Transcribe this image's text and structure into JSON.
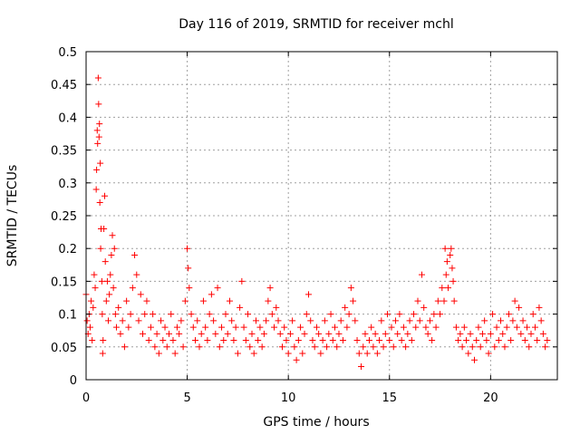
{
  "chart_data": {
    "type": "scatter",
    "title": "Day 116 of 2019, SRMTID for receiver mchl",
    "xlabel": "GPS time / hours",
    "ylabel": "SRMTID / TECUs",
    "xlim": [
      0,
      23.3
    ],
    "ylim": [
      0,
      0.5
    ],
    "xticks": [
      0,
      5,
      10,
      15,
      20
    ],
    "xtick_labels": [
      "0",
      "5",
      "10",
      "15",
      "20"
    ],
    "yticks": [
      0,
      0.05,
      0.1,
      0.15,
      0.2,
      0.25,
      0.3,
      0.35,
      0.4,
      0.45,
      0.5
    ],
    "ytick_labels": [
      "0",
      "0.05",
      "0.1",
      "0.15",
      "0.2",
      "0.25",
      "0.3",
      "0.35",
      "0.4",
      "0.45",
      "0.5"
    ],
    "grid": true,
    "marker": "+",
    "color": "#ff0000",
    "series": [
      {
        "name": "SRMTID",
        "points": [
          [
            0.0,
            0.13
          ],
          [
            0.05,
            0.09
          ],
          [
            0.1,
            0.07
          ],
          [
            0.15,
            0.1
          ],
          [
            0.2,
            0.08
          ],
          [
            0.25,
            0.12
          ],
          [
            0.3,
            0.06
          ],
          [
            0.35,
            0.11
          ],
          [
            0.4,
            0.16
          ],
          [
            0.45,
            0.14
          ],
          [
            0.5,
            0.29
          ],
          [
            0.52,
            0.32
          ],
          [
            0.55,
            0.38
          ],
          [
            0.57,
            0.36
          ],
          [
            0.6,
            0.46
          ],
          [
            0.62,
            0.42
          ],
          [
            0.64,
            0.37
          ],
          [
            0.66,
            0.39
          ],
          [
            0.68,
            0.27
          ],
          [
            0.7,
            0.33
          ],
          [
            0.72,
            0.2
          ],
          [
            0.74,
            0.23
          ],
          [
            0.78,
            0.15
          ],
          [
            0.8,
            0.1
          ],
          [
            0.82,
            0.04
          ],
          [
            0.84,
            0.06
          ],
          [
            0.88,
            0.23
          ],
          [
            0.92,
            0.28
          ],
          [
            0.95,
            0.18
          ],
          [
            1.0,
            0.12
          ],
          [
            1.05,
            0.15
          ],
          [
            1.1,
            0.09
          ],
          [
            1.15,
            0.13
          ],
          [
            1.2,
            0.16
          ],
          [
            1.25,
            0.19
          ],
          [
            1.3,
            0.22
          ],
          [
            1.35,
            0.14
          ],
          [
            1.4,
            0.2
          ],
          [
            1.45,
            0.1
          ],
          [
            1.5,
            0.08
          ],
          [
            1.6,
            0.11
          ],
          [
            1.7,
            0.07
          ],
          [
            1.8,
            0.09
          ],
          [
            1.9,
            0.05
          ],
          [
            2.0,
            0.12
          ],
          [
            2.1,
            0.08
          ],
          [
            2.2,
            0.1
          ],
          [
            2.3,
            0.14
          ],
          [
            2.4,
            0.19
          ],
          [
            2.5,
            0.16
          ],
          [
            2.6,
            0.09
          ],
          [
            2.7,
            0.13
          ],
          [
            2.8,
            0.07
          ],
          [
            2.9,
            0.1
          ],
          [
            3.0,
            0.12
          ],
          [
            3.1,
            0.06
          ],
          [
            3.2,
            0.08
          ],
          [
            3.3,
            0.1
          ],
          [
            3.4,
            0.05
          ],
          [
            3.5,
            0.07
          ],
          [
            3.6,
            0.04
          ],
          [
            3.7,
            0.09
          ],
          [
            3.8,
            0.06
          ],
          [
            3.9,
            0.08
          ],
          [
            4.0,
            0.05
          ],
          [
            4.1,
            0.07
          ],
          [
            4.2,
            0.1
          ],
          [
            4.3,
            0.06
          ],
          [
            4.4,
            0.04
          ],
          [
            4.5,
            0.08
          ],
          [
            4.6,
            0.07
          ],
          [
            4.7,
            0.09
          ],
          [
            4.8,
            0.05
          ],
          [
            4.9,
            0.12
          ],
          [
            5.0,
            0.2
          ],
          [
            5.05,
            0.17
          ],
          [
            5.1,
            0.14
          ],
          [
            5.2,
            0.1
          ],
          [
            5.3,
            0.08
          ],
          [
            5.4,
            0.06
          ],
          [
            5.5,
            0.09
          ],
          [
            5.6,
            0.05
          ],
          [
            5.7,
            0.07
          ],
          [
            5.8,
            0.12
          ],
          [
            5.9,
            0.08
          ],
          [
            6.0,
            0.06
          ],
          [
            6.1,
            0.1
          ],
          [
            6.2,
            0.13
          ],
          [
            6.3,
            0.09
          ],
          [
            6.4,
            0.07
          ],
          [
            6.5,
            0.14
          ],
          [
            6.6,
            0.05
          ],
          [
            6.7,
            0.08
          ],
          [
            6.8,
            0.06
          ],
          [
            6.9,
            0.1
          ],
          [
            7.0,
            0.07
          ],
          [
            7.1,
            0.12
          ],
          [
            7.2,
            0.09
          ],
          [
            7.3,
            0.06
          ],
          [
            7.4,
            0.08
          ],
          [
            7.5,
            0.04
          ],
          [
            7.6,
            0.11
          ],
          [
            7.7,
            0.15
          ],
          [
            7.8,
            0.08
          ],
          [
            7.9,
            0.06
          ],
          [
            8.0,
            0.1
          ],
          [
            8.1,
            0.05
          ],
          [
            8.2,
            0.07
          ],
          [
            8.3,
            0.04
          ],
          [
            8.4,
            0.09
          ],
          [
            8.5,
            0.06
          ],
          [
            8.6,
            0.08
          ],
          [
            8.7,
            0.05
          ],
          [
            8.8,
            0.07
          ],
          [
            8.9,
            0.09
          ],
          [
            9.0,
            0.12
          ],
          [
            9.1,
            0.14
          ],
          [
            9.2,
            0.1
          ],
          [
            9.3,
            0.08
          ],
          [
            9.4,
            0.11
          ],
          [
            9.5,
            0.09
          ],
          [
            9.6,
            0.07
          ],
          [
            9.7,
            0.05
          ],
          [
            9.8,
            0.08
          ],
          [
            9.9,
            0.06
          ],
          [
            10.0,
            0.04
          ],
          [
            10.1,
            0.07
          ],
          [
            10.2,
            0.09
          ],
          [
            10.3,
            0.05
          ],
          [
            10.4,
            0.03
          ],
          [
            10.5,
            0.06
          ],
          [
            10.6,
            0.08
          ],
          [
            10.7,
            0.04
          ],
          [
            10.8,
            0.07
          ],
          [
            10.9,
            0.1
          ],
          [
            11.0,
            0.13
          ],
          [
            11.1,
            0.09
          ],
          [
            11.2,
            0.06
          ],
          [
            11.3,
            0.05
          ],
          [
            11.4,
            0.08
          ],
          [
            11.5,
            0.07
          ],
          [
            11.6,
            0.04
          ],
          [
            11.7,
            0.06
          ],
          [
            11.8,
            0.09
          ],
          [
            11.9,
            0.05
          ],
          [
            12.0,
            0.07
          ],
          [
            12.1,
            0.1
          ],
          [
            12.2,
            0.06
          ],
          [
            12.3,
            0.08
          ],
          [
            12.4,
            0.05
          ],
          [
            12.5,
            0.07
          ],
          [
            12.6,
            0.09
          ],
          [
            12.7,
            0.06
          ],
          [
            12.8,
            0.11
          ],
          [
            12.9,
            0.08
          ],
          [
            13.0,
            0.1
          ],
          [
            13.1,
            0.14
          ],
          [
            13.2,
            0.12
          ],
          [
            13.3,
            0.09
          ],
          [
            13.4,
            0.06
          ],
          [
            13.5,
            0.04
          ],
          [
            13.6,
            0.02
          ],
          [
            13.7,
            0.05
          ],
          [
            13.8,
            0.07
          ],
          [
            13.9,
            0.04
          ],
          [
            14.0,
            0.06
          ],
          [
            14.1,
            0.08
          ],
          [
            14.2,
            0.05
          ],
          [
            14.3,
            0.07
          ],
          [
            14.4,
            0.04
          ],
          [
            14.5,
            0.06
          ],
          [
            14.6,
            0.09
          ],
          [
            14.7,
            0.05
          ],
          [
            14.8,
            0.07
          ],
          [
            14.9,
            0.1
          ],
          [
            15.0,
            0.06
          ],
          [
            15.1,
            0.08
          ],
          [
            15.2,
            0.05
          ],
          [
            15.3,
            0.09
          ],
          [
            15.4,
            0.07
          ],
          [
            15.5,
            0.1
          ],
          [
            15.6,
            0.06
          ],
          [
            15.7,
            0.08
          ],
          [
            15.8,
            0.05
          ],
          [
            15.9,
            0.07
          ],
          [
            16.0,
            0.09
          ],
          [
            16.1,
            0.06
          ],
          [
            16.2,
            0.1
          ],
          [
            16.3,
            0.08
          ],
          [
            16.4,
            0.12
          ],
          [
            16.5,
            0.09
          ],
          [
            16.6,
            0.16
          ],
          [
            16.7,
            0.11
          ],
          [
            16.8,
            0.08
          ],
          [
            16.9,
            0.07
          ],
          [
            17.0,
            0.09
          ],
          [
            17.1,
            0.06
          ],
          [
            17.2,
            0.1
          ],
          [
            17.3,
            0.08
          ],
          [
            17.4,
            0.12
          ],
          [
            17.5,
            0.1
          ],
          [
            17.6,
            0.14
          ],
          [
            17.7,
            0.12
          ],
          [
            17.75,
            0.2
          ],
          [
            17.8,
            0.16
          ],
          [
            17.85,
            0.18
          ],
          [
            17.9,
            0.14
          ],
          [
            18.0,
            0.19
          ],
          [
            18.05,
            0.2
          ],
          [
            18.1,
            0.17
          ],
          [
            18.15,
            0.15
          ],
          [
            18.2,
            0.12
          ],
          [
            18.3,
            0.08
          ],
          [
            18.4,
            0.06
          ],
          [
            18.5,
            0.07
          ],
          [
            18.6,
            0.05
          ],
          [
            18.7,
            0.08
          ],
          [
            18.8,
            0.06
          ],
          [
            18.9,
            0.04
          ],
          [
            19.0,
            0.07
          ],
          [
            19.1,
            0.05
          ],
          [
            19.2,
            0.03
          ],
          [
            19.3,
            0.06
          ],
          [
            19.4,
            0.08
          ],
          [
            19.5,
            0.05
          ],
          [
            19.6,
            0.07
          ],
          [
            19.7,
            0.09
          ],
          [
            19.8,
            0.06
          ],
          [
            19.9,
            0.04
          ],
          [
            20.0,
            0.07
          ],
          [
            20.1,
            0.1
          ],
          [
            20.2,
            0.05
          ],
          [
            20.3,
            0.08
          ],
          [
            20.4,
            0.06
          ],
          [
            20.5,
            0.09
          ],
          [
            20.6,
            0.07
          ],
          [
            20.7,
            0.05
          ],
          [
            20.8,
            0.08
          ],
          [
            20.9,
            0.1
          ],
          [
            21.0,
            0.06
          ],
          [
            21.1,
            0.09
          ],
          [
            21.2,
            0.12
          ],
          [
            21.3,
            0.08
          ],
          [
            21.4,
            0.11
          ],
          [
            21.5,
            0.07
          ],
          [
            21.6,
            0.09
          ],
          [
            21.7,
            0.06
          ],
          [
            21.8,
            0.08
          ],
          [
            21.9,
            0.05
          ],
          [
            22.0,
            0.07
          ],
          [
            22.1,
            0.1
          ],
          [
            22.2,
            0.08
          ],
          [
            22.3,
            0.06
          ],
          [
            22.4,
            0.11
          ],
          [
            22.5,
            0.09
          ],
          [
            22.6,
            0.07
          ],
          [
            22.7,
            0.05
          ],
          [
            22.8,
            0.06
          ]
        ]
      }
    ]
  }
}
